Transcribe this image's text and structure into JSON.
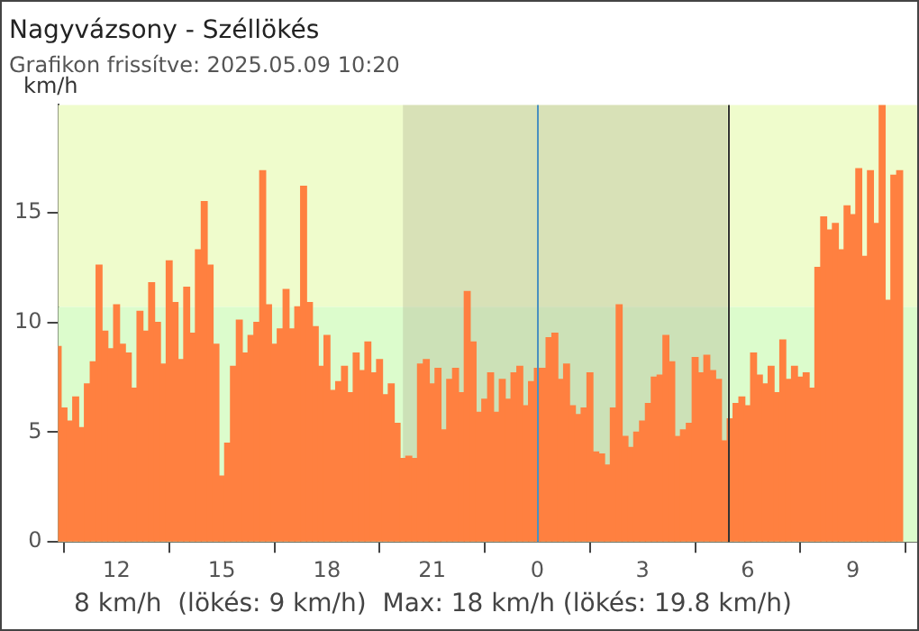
{
  "chart_data": {
    "type": "bar",
    "title": "Nagyvázsony - Széllökés",
    "subtitle": "Grafikon frissítve: 2025.05.09 10:20",
    "ylabel": "km/h",
    "x": [
      "2025-05-08T10:20",
      "2025-05-08T10:30",
      "2025-05-08T10:40",
      "2025-05-08T10:50",
      "2025-05-08T11:00",
      "2025-05-08T11:10",
      "2025-05-08T11:20",
      "2025-05-08T11:30",
      "2025-05-08T11:40",
      "2025-05-08T11:50",
      "2025-05-08T12:00",
      "2025-05-08T12:10",
      "2025-05-08T12:20",
      "2025-05-08T12:30",
      "2025-05-08T12:40",
      "2025-05-08T12:50",
      "2025-05-08T13:00",
      "2025-05-08T13:10",
      "2025-05-08T13:20",
      "2025-05-08T13:30",
      "2025-05-08T13:40",
      "2025-05-08T13:50",
      "2025-05-08T14:00",
      "2025-05-08T14:10",
      "2025-05-08T14:20",
      "2025-05-08T14:30",
      "2025-05-08T14:40",
      "2025-05-08T14:50",
      "2025-05-08T15:00",
      "2025-05-08T15:10",
      "2025-05-08T15:20",
      "2025-05-08T15:30",
      "2025-05-08T15:40",
      "2025-05-08T15:50",
      "2025-05-08T16:00",
      "2025-05-08T16:10",
      "2025-05-08T16:20",
      "2025-05-08T16:30",
      "2025-05-08T16:40",
      "2025-05-08T16:50",
      "2025-05-08T17:00",
      "2025-05-08T17:10",
      "2025-05-08T17:20",
      "2025-05-08T17:30",
      "2025-05-08T17:40",
      "2025-05-08T17:50",
      "2025-05-08T18:00",
      "2025-05-08T18:10",
      "2025-05-08T18:20",
      "2025-05-08T18:30",
      "2025-05-08T18:40",
      "2025-05-08T18:50",
      "2025-05-08T19:00",
      "2025-05-08T19:10",
      "2025-05-08T19:20",
      "2025-05-08T19:30",
      "2025-05-08T19:40",
      "2025-05-08T19:50",
      "2025-05-08T20:00",
      "2025-05-08T20:10",
      "2025-05-08T20:20",
      "2025-05-08T20:30",
      "2025-05-08T20:40",
      "2025-05-08T20:50",
      "2025-05-08T21:00",
      "2025-05-08T21:10",
      "2025-05-08T21:20",
      "2025-05-08T21:30",
      "2025-05-08T21:40",
      "2025-05-08T21:50",
      "2025-05-08T22:00",
      "2025-05-08T22:10",
      "2025-05-08T22:20",
      "2025-05-08T22:30",
      "2025-05-08T22:40",
      "2025-05-08T22:50",
      "2025-05-08T23:00",
      "2025-05-08T23:10",
      "2025-05-08T23:20",
      "2025-05-08T23:30",
      "2025-05-08T23:40",
      "2025-05-08T23:50",
      "2025-05-09T00:00",
      "2025-05-09T00:10",
      "2025-05-09T00:20",
      "2025-05-09T00:30",
      "2025-05-09T00:40",
      "2025-05-09T00:50",
      "2025-05-09T01:00",
      "2025-05-09T01:10",
      "2025-05-09T01:20",
      "2025-05-09T01:30",
      "2025-05-09T01:40",
      "2025-05-09T01:50",
      "2025-05-09T02:00",
      "2025-05-09T02:10",
      "2025-05-09T02:20",
      "2025-05-09T02:30",
      "2025-05-09T02:40",
      "2025-05-09T02:50",
      "2025-05-09T03:00",
      "2025-05-09T03:10",
      "2025-05-09T03:20",
      "2025-05-09T03:30",
      "2025-05-09T03:40",
      "2025-05-09T03:50",
      "2025-05-09T04:00",
      "2025-05-09T04:10",
      "2025-05-09T04:20",
      "2025-05-09T04:30",
      "2025-05-09T04:40",
      "2025-05-09T04:50",
      "2025-05-09T05:00",
      "2025-05-09T05:10",
      "2025-05-09T05:20",
      "2025-05-09T05:30",
      "2025-05-09T05:40",
      "2025-05-09T05:50",
      "2025-05-09T06:00",
      "2025-05-09T06:10",
      "2025-05-09T06:20",
      "2025-05-09T06:30",
      "2025-05-09T06:40",
      "2025-05-09T06:50",
      "2025-05-09T07:00",
      "2025-05-09T07:10",
      "2025-05-09T07:20",
      "2025-05-09T07:30",
      "2025-05-09T07:40",
      "2025-05-09T07:50",
      "2025-05-09T08:00",
      "2025-05-09T08:10",
      "2025-05-09T08:20",
      "2025-05-09T08:30",
      "2025-05-09T08:40",
      "2025-05-09T08:50",
      "2025-05-09T09:00",
      "2025-05-09T09:10",
      "2025-05-09T09:20",
      "2025-05-09T09:30",
      "2025-05-09T09:40",
      "2025-05-09T09:50",
      "2025-05-09T10:00",
      "2025-05-09T10:10",
      "2025-05-09T10:20"
    ],
    "values": [
      8.9,
      6.1,
      5.5,
      6.6,
      5.2,
      7.2,
      8.2,
      12.6,
      9.6,
      8.8,
      10.8,
      9.0,
      8.6,
      7.0,
      10.5,
      9.6,
      11.8,
      10.0,
      8.1,
      12.8,
      10.9,
      8.3,
      11.6,
      9.5,
      13.3,
      15.5,
      12.6,
      9.0,
      3.0,
      4.5,
      8.0,
      10.1,
      8.6,
      9.4,
      10.0,
      16.9,
      10.8,
      9.0,
      9.7,
      11.5,
      9.7,
      10.7,
      16.2,
      10.9,
      9.8,
      8.0,
      9.4,
      6.9,
      7.3,
      8.0,
      6.8,
      8.6,
      7.8,
      9.1,
      7.7,
      8.3,
      6.7,
      7.2,
      5.4,
      3.8,
      3.9,
      3.8,
      8.1,
      8.3,
      7.2,
      7.9,
      5.1,
      7.4,
      7.9,
      6.8,
      11.4,
      9.1,
      5.9,
      6.5,
      7.7,
      5.9,
      7.4,
      6.5,
      7.7,
      8.0,
      6.2,
      7.3,
      7.9,
      7.9,
      9.3,
      9.5,
      7.4,
      8.1,
      6.2,
      5.8,
      6.1,
      7.7,
      4.1,
      4.0,
      3.5,
      6.1,
      10.8,
      4.8,
      4.3,
      5.0,
      5.5,
      6.3,
      7.5,
      7.6,
      9.4,
      8.2,
      4.8,
      5.1,
      5.4,
      8.4,
      7.7,
      8.5,
      7.8,
      7.4,
      4.6,
      5.6,
      6.3,
      6.6,
      6.2,
      8.6,
      7.6,
      7.2,
      8.0,
      6.8,
      9.2,
      7.4,
      8.0,
      7.5,
      7.7,
      7.0,
      12.5,
      14.8,
      14.2,
      14.5,
      13.3,
      15.3,
      14.9,
      17.0,
      13.0,
      16.9,
      14.5,
      19.9,
      11.0,
      16.7,
      16.9
    ],
    "color": "#ff8040",
    "xlim": [
      "2025-05-08T10:20",
      "2025-05-09T10:50"
    ],
    "xticks": [
      {
        "value": "2025-05-08T12:00",
        "label": "12"
      },
      {
        "value": "2025-05-08T15:00",
        "label": "15"
      },
      {
        "value": "2025-05-08T18:00",
        "label": "18"
      },
      {
        "value": "2025-05-08T21:00",
        "label": "21"
      },
      {
        "value": "2025-05-09T00:00",
        "label": "0"
      },
      {
        "value": "2025-05-09T03:00",
        "label": "3"
      },
      {
        "value": "2025-05-09T06:00",
        "label": "6"
      },
      {
        "value": "2025-05-09T09:00",
        "label": "9"
      }
    ],
    "ylim": [
      0,
      19.9
    ],
    "yticks": [
      0,
      5,
      10,
      15
    ],
    "grid": false,
    "legend": false,
    "bands": [
      {
        "axis": "y",
        "from": 10.7,
        "to": 19.9,
        "color": "#effccc"
      },
      {
        "axis": "y",
        "from": 0,
        "to": 10.7,
        "color": "#dcfccc"
      },
      {
        "axis": "x",
        "from": "2025-05-08T20:10",
        "to": "2025-05-09T05:25",
        "color": "#b0b090"
      }
    ],
    "ref_lines": [
      {
        "axis": "x",
        "value": "2025-05-09T00:00",
        "color": "#4a90c0"
      },
      {
        "axis": "x",
        "value": "2025-05-09T05:25",
        "color": "#333333"
      }
    ],
    "annotations": [
      "8 km/h  (lökés: 9 km/h)  Max: 18 km/h (lökés: 19.8 km/h)"
    ]
  }
}
